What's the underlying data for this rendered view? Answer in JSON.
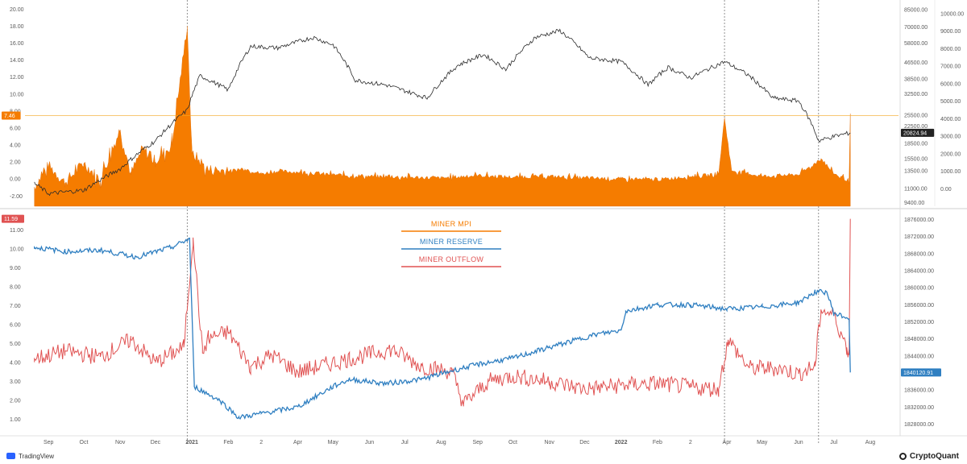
{
  "chart_data": [
    {
      "type": "area",
      "panel": "top",
      "left_axis_ticks": [
        "-2.00",
        "0.00",
        "2.00",
        "4.00",
        "6.00",
        "8.00",
        "10.00",
        "12.00",
        "14.00",
        "16.00",
        "18.00",
        "20.00"
      ],
      "left_axis_range": [
        -3.2,
        20.5
      ],
      "right_axis_1_ticks": [
        "9400.00",
        "11000.00",
        "13500.00",
        "15500.00",
        "18500.00",
        "22500.00",
        "25500.00",
        "32500.00",
        "38500.00",
        "46500.00",
        "58000.00",
        "70000.00",
        "85000.00"
      ],
      "right_axis_2_ticks": [
        "0.00",
        "1000.00",
        "2000.00",
        "3000.00",
        "4000.00",
        "5000.00",
        "6000.00",
        "7000.00",
        "8000.00",
        "9000.00",
        "10000.00"
      ],
      "current_labels": {
        "mpi": "7.46",
        "price": "20824.94"
      },
      "colors": {
        "mpi": "#f57c00",
        "price": "#2b2b2b",
        "mpi_ref_line": "#f5a623"
      },
      "series": [
        {
          "name": "MINER MPI",
          "x": [
            "2020-08-20",
            "2020-09-01",
            "2020-09-15",
            "2020-10-01",
            "2020-10-15",
            "2020-11-01",
            "2020-11-10",
            "2020-11-20",
            "2020-12-01",
            "2020-12-15",
            "2020-12-28",
            "2021-01-01",
            "2021-01-15",
            "2021-02-01",
            "2021-02-15",
            "2021-03-01",
            "2021-03-15",
            "2021-04-01",
            "2021-05-01",
            "2021-06-01",
            "2021-07-01",
            "2021-08-01",
            "2021-09-01",
            "2021-10-01",
            "2021-11-01",
            "2021-12-01",
            "2022-01-01",
            "2022-02-01",
            "2022-03-01",
            "2022-03-25",
            "2022-03-30",
            "2022-04-05",
            "2022-04-20",
            "2022-05-01",
            "2022-06-01",
            "2022-06-15",
            "2022-06-20",
            "2022-07-01",
            "2022-07-14",
            "2022-07-15"
          ],
          "values": [
            -1.0,
            1.5,
            -0.5,
            1.8,
            -0.2,
            5.8,
            0.5,
            3.5,
            2.0,
            4.0,
            18.0,
            3.0,
            1.0,
            0.9,
            1.2,
            0.6,
            0.9,
            0.8,
            0.5,
            0.3,
            0.2,
            0.1,
            0.4,
            0.2,
            0.3,
            0.1,
            0.0,
            -0.1,
            0.3,
            0.5,
            7.2,
            1.0,
            0.6,
            0.3,
            0.5,
            1.8,
            2.4,
            0.6,
            -0.2,
            7.46
          ]
        },
        {
          "name": "BTC Price",
          "x": [
            "2020-08-20",
            "2020-09-01",
            "2020-10-01",
            "2020-11-01",
            "2020-12-01",
            "2020-12-28",
            "2021-01-08",
            "2021-02-01",
            "2021-02-20",
            "2021-03-15",
            "2021-04-14",
            "2021-05-01",
            "2021-05-20",
            "2021-06-15",
            "2021-07-20",
            "2021-08-15",
            "2021-09-06",
            "2021-09-25",
            "2021-10-20",
            "2021-11-10",
            "2021-12-05",
            "2022-01-01",
            "2022-01-24",
            "2022-02-10",
            "2022-03-01",
            "2022-03-30",
            "2022-04-20",
            "2022-05-10",
            "2022-06-01",
            "2022-06-13",
            "2022-06-18",
            "2022-07-01",
            "2022-07-15"
          ],
          "values": [
            11700,
            10400,
            10800,
            13800,
            19000,
            27000,
            40000,
            34000,
            56000,
            55000,
            62000,
            57000,
            38000,
            36000,
            31000,
            45000,
            51000,
            43000,
            62000,
            67000,
            49000,
            47000,
            36000,
            44000,
            39000,
            47000,
            40000,
            31000,
            30000,
            22500,
            19000,
            20000,
            20824.94
          ]
        }
      ]
    },
    {
      "type": "line",
      "panel": "bottom",
      "left_axis_ticks": [
        "1.00",
        "2.00",
        "3.00",
        "4.00",
        "5.00",
        "6.00",
        "7.00",
        "8.00",
        "9.00",
        "10.00",
        "11.00"
      ],
      "left_axis_range": [
        0.3,
        12.0
      ],
      "right_axis_ticks": [
        "1828000.00",
        "1832000.00",
        "1836000.00",
        "1840000.00",
        "1844000.00",
        "1848000.00",
        "1852000.00",
        "1856000.00",
        "1860000.00",
        "1864000.00",
        "1868000.00",
        "1872000.00",
        "1876000.00"
      ],
      "right_axis_range": [
        1826000,
        1878000
      ],
      "current_labels": {
        "outflow": "11.59",
        "reserve": "1840120.91"
      },
      "colors": {
        "outflow": "#e05252",
        "reserve": "#2f7fc1"
      },
      "series": [
        {
          "name": "MINER OUTFLOW",
          "x": [
            "2020-08-20",
            "2020-09-15",
            "2020-10-15",
            "2020-11-10",
            "2020-12-01",
            "2020-12-25",
            "2021-01-02",
            "2021-01-10",
            "2021-01-15",
            "2021-02-01",
            "2021-02-20",
            "2021-03-10",
            "2021-04-01",
            "2021-05-15",
            "2021-06-20",
            "2021-07-15",
            "2021-08-10",
            "2021-08-20",
            "2021-09-10",
            "2021-10-01",
            "2021-11-01",
            "2021-12-01",
            "2022-01-01",
            "2022-02-01",
            "2022-03-01",
            "2022-03-25",
            "2022-04-02",
            "2022-04-20",
            "2022-05-15",
            "2022-06-01",
            "2022-06-15",
            "2022-06-20",
            "2022-07-01",
            "2022-07-12",
            "2022-07-14",
            "2022-07-15"
          ],
          "values": [
            4.2,
            4.6,
            4.3,
            5.2,
            4.0,
            4.8,
            10.6,
            4.5,
            5.3,
            5.6,
            3.8,
            4.4,
            3.5,
            4.2,
            4.7,
            3.8,
            3.5,
            1.8,
            3.0,
            3.3,
            3.0,
            2.6,
            2.8,
            2.9,
            2.7,
            2.6,
            5.2,
            3.7,
            3.7,
            3.4,
            3.8,
            6.8,
            6.5,
            4.8,
            4.4,
            11.59
          ]
        },
        {
          "name": "MINER RESERVE",
          "x": [
            "2020-08-20",
            "2020-09-15",
            "2020-10-15",
            "2020-11-15",
            "2020-12-15",
            "2020-12-30",
            "2021-01-03",
            "2021-01-25",
            "2021-02-10",
            "2021-03-01",
            "2021-04-01",
            "2021-05-01",
            "2021-05-15",
            "2021-06-15",
            "2021-07-15",
            "2021-08-10",
            "2021-09-01",
            "2021-10-01",
            "2021-11-01",
            "2021-12-10",
            "2022-01-01",
            "2022-01-05",
            "2022-02-01",
            "2022-03-01",
            "2022-04-01",
            "2022-05-01",
            "2022-06-01",
            "2022-06-15",
            "2022-06-25",
            "2022-07-01",
            "2022-07-14",
            "2022-07-15"
          ],
          "values": [
            1869500,
            1868500,
            1868800,
            1867200,
            1869500,
            1871500,
            1836800,
            1833500,
            1829500,
            1830500,
            1832000,
            1836800,
            1838500,
            1837500,
            1838500,
            1840500,
            1842000,
            1843500,
            1846000,
            1849000,
            1850000,
            1854500,
            1856000,
            1856000,
            1855000,
            1855500,
            1856500,
            1859000,
            1859000,
            1854000,
            1852800,
            1840120.91
          ]
        }
      ]
    }
  ],
  "x_axis": {
    "range": [
      "2020-08-12",
      "2022-08-25"
    ],
    "ticks": [
      {
        "date": "2020-09-01",
        "label": "Sep"
      },
      {
        "date": "2020-10-01",
        "label": "Oct"
      },
      {
        "date": "2020-11-01",
        "label": "Nov"
      },
      {
        "date": "2020-12-01",
        "label": "Dec"
      },
      {
        "date": "2021-01-01",
        "label": "2021",
        "bold": true
      },
      {
        "date": "2021-02-01",
        "label": "Feb"
      },
      {
        "date": "2021-03-01",
        "label": "2"
      },
      {
        "date": "2021-04-01",
        "label": "Apr"
      },
      {
        "date": "2021-05-01",
        "label": "May"
      },
      {
        "date": "2021-06-01",
        "label": "Jun"
      },
      {
        "date": "2021-07-01",
        "label": "Jul"
      },
      {
        "date": "2021-08-01",
        "label": "Aug"
      },
      {
        "date": "2021-09-01",
        "label": "Sep"
      },
      {
        "date": "2021-10-01",
        "label": "Oct"
      },
      {
        "date": "2021-11-01",
        "label": "Nov"
      },
      {
        "date": "2021-12-01",
        "label": "Dec"
      },
      {
        "date": "2022-01-01",
        "label": "2022",
        "bold": true
      },
      {
        "date": "2022-02-01",
        "label": "Feb"
      },
      {
        "date": "2022-03-01",
        "label": "2"
      },
      {
        "date": "2022-04-01",
        "label": "Apr"
      },
      {
        "date": "2022-05-01",
        "label": "May"
      },
      {
        "date": "2022-06-01",
        "label": "Jun"
      },
      {
        "date": "2022-07-01",
        "label": "Jul"
      },
      {
        "date": "2022-08-01",
        "label": "Aug"
      }
    ],
    "event_lines": [
      "2020-12-28",
      "2022-03-30",
      "2022-06-18"
    ]
  },
  "legend": [
    {
      "name": "MINER MPI",
      "color": "#f57c00"
    },
    {
      "name": "MINER RESERVE",
      "color": "#2f7fc1"
    },
    {
      "name": "MINER OUTFLOW",
      "color": "#e05252"
    }
  ],
  "footer": {
    "left_brand": "TradingView",
    "right_brand": "CryptoQuant"
  }
}
